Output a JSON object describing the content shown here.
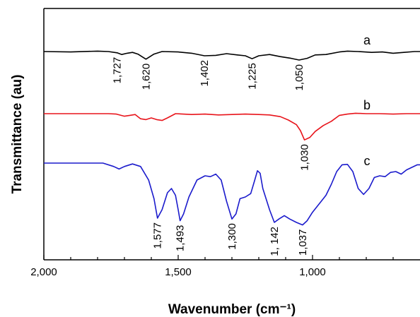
{
  "chart_data": {
    "type": "line",
    "xlabel": "Wavenumber (cm⁻¹)",
    "ylabel": "Transmittance (au)",
    "xlim": [
      2000,
      600
    ],
    "x_reversed": true,
    "xticks": [
      2000,
      1500,
      1000
    ],
    "xtick_labels": [
      "2,000",
      "1,500",
      "1,000"
    ],
    "yticks": false,
    "grid": false,
    "legend": "none",
    "colors": {
      "a": "#000000",
      "b": "#e8141b",
      "c": "#1b1bcc"
    },
    "series": [
      {
        "name": "a",
        "points": [
          [
            2000,
            0.0
          ],
          [
            1900,
            -0.5
          ],
          [
            1800,
            0.5
          ],
          [
            1760,
            0.0
          ],
          [
            1727,
            -1.5
          ],
          [
            1710,
            -3.5
          ],
          [
            1690,
            -2.0
          ],
          [
            1670,
            -1.0
          ],
          [
            1650,
            -3.0
          ],
          [
            1620,
            -9.0
          ],
          [
            1590,
            -3.0
          ],
          [
            1560,
            0.0
          ],
          [
            1500,
            -0.5
          ],
          [
            1450,
            -2.0
          ],
          [
            1402,
            -5.0
          ],
          [
            1360,
            -4.5
          ],
          [
            1320,
            -2.5
          ],
          [
            1280,
            -4.0
          ],
          [
            1250,
            -5.0
          ],
          [
            1225,
            -8.5
          ],
          [
            1200,
            -5.0
          ],
          [
            1160,
            -3.5
          ],
          [
            1120,
            -6.0
          ],
          [
            1080,
            -8.0
          ],
          [
            1050,
            -10.0
          ],
          [
            1020,
            -8.0
          ],
          [
            990,
            -4.0
          ],
          [
            950,
            -3.5
          ],
          [
            900,
            -0.5
          ],
          [
            870,
            0.5
          ],
          [
            830,
            0.0
          ],
          [
            780,
            -1.0
          ],
          [
            740,
            -0.5
          ],
          [
            700,
            -2.0
          ],
          [
            660,
            -1.0
          ],
          [
            620,
            0.0
          ],
          [
            600,
            0.0
          ]
        ]
      },
      {
        "name": "b",
        "points": [
          [
            2000,
            0.0
          ],
          [
            1800,
            0.0
          ],
          [
            1760,
            0.0
          ],
          [
            1730,
            -0.5
          ],
          [
            1700,
            -3.0
          ],
          [
            1680,
            -2.0
          ],
          [
            1660,
            -1.0
          ],
          [
            1640,
            -6.0
          ],
          [
            1620,
            -7.0
          ],
          [
            1600,
            -5.0
          ],
          [
            1580,
            -7.0
          ],
          [
            1560,
            -8.0
          ],
          [
            1540,
            -5.0
          ],
          [
            1510,
            0.0
          ],
          [
            1450,
            -1.0
          ],
          [
            1400,
            -0.5
          ],
          [
            1350,
            -1.5
          ],
          [
            1300,
            -1.0
          ],
          [
            1250,
            -0.5
          ],
          [
            1200,
            -1.0
          ],
          [
            1160,
            -1.5
          ],
          [
            1120,
            -3.5
          ],
          [
            1090,
            -7.5
          ],
          [
            1060,
            -13.0
          ],
          [
            1045,
            -20.0
          ],
          [
            1030,
            -31.0
          ],
          [
            1010,
            -28.0
          ],
          [
            990,
            -21.0
          ],
          [
            960,
            -14.0
          ],
          [
            930,
            -9.0
          ],
          [
            900,
            -2.0
          ],
          [
            870,
            -0.5
          ],
          [
            840,
            0.5
          ],
          [
            800,
            0.0
          ],
          [
            750,
            0.0
          ],
          [
            700,
            -0.5
          ],
          [
            650,
            0.0
          ],
          [
            600,
            0.0
          ]
        ]
      },
      {
        "name": "c",
        "points": [
          [
            2000,
            0.0
          ],
          [
            1850,
            0.0
          ],
          [
            1780,
            0.0
          ],
          [
            1740,
            -4.0
          ],
          [
            1720,
            -7.0
          ],
          [
            1700,
            -4.0
          ],
          [
            1670,
            -1.0
          ],
          [
            1640,
            -4.0
          ],
          [
            1610,
            -20.0
          ],
          [
            1590,
            -42.0
          ],
          [
            1577,
            -65.0
          ],
          [
            1560,
            -55.0
          ],
          [
            1540,
            -35.0
          ],
          [
            1525,
            -30.0
          ],
          [
            1510,
            -38.0
          ],
          [
            1500,
            -55.0
          ],
          [
            1493,
            -68.0
          ],
          [
            1480,
            -60.0
          ],
          [
            1460,
            -40.0
          ],
          [
            1430,
            -20.0
          ],
          [
            1400,
            -15.0
          ],
          [
            1380,
            -16.0
          ],
          [
            1360,
            -13.0
          ],
          [
            1340,
            -20.0
          ],
          [
            1320,
            -45.0
          ],
          [
            1300,
            -66.0
          ],
          [
            1285,
            -60.0
          ],
          [
            1270,
            -42.0
          ],
          [
            1250,
            -40.0
          ],
          [
            1230,
            -36.0
          ],
          [
            1215,
            -20.0
          ],
          [
            1205,
            -9.0
          ],
          [
            1195,
            -12.0
          ],
          [
            1185,
            -30.0
          ],
          [
            1160,
            -55.0
          ],
          [
            1142,
            -70.0
          ],
          [
            1125,
            -66.0
          ],
          [
            1105,
            -62.0
          ],
          [
            1085,
            -66.0
          ],
          [
            1060,
            -70.0
          ],
          [
            1037,
            -73.0
          ],
          [
            1020,
            -68.0
          ],
          [
            1000,
            -58.0
          ],
          [
            970,
            -46.0
          ],
          [
            950,
            -38.0
          ],
          [
            930,
            -25.0
          ],
          [
            910,
            -10.0
          ],
          [
            890,
            -2.0
          ],
          [
            870,
            -1.5
          ],
          [
            850,
            -10.0
          ],
          [
            830,
            -30.0
          ],
          [
            810,
            -37.0
          ],
          [
            790,
            -30.0
          ],
          [
            770,
            -17.0
          ],
          [
            750,
            -15.0
          ],
          [
            730,
            -16.0
          ],
          [
            710,
            -11.0
          ],
          [
            690,
            -10.0
          ],
          [
            670,
            -13.0
          ],
          [
            650,
            -8.0
          ],
          [
            630,
            -5.0
          ],
          [
            610,
            -2.0
          ],
          [
            600,
            -2.0
          ]
        ]
      }
    ],
    "peak_labels": [
      {
        "series": "a",
        "x": 1727,
        "text": "1,727"
      },
      {
        "series": "a",
        "x": 1620,
        "text": "1,620"
      },
      {
        "series": "a",
        "x": 1402,
        "text": "1,402"
      },
      {
        "series": "a",
        "x": 1225,
        "text": "1,225"
      },
      {
        "series": "a",
        "x": 1050,
        "text": "1,050"
      },
      {
        "series": "b",
        "x": 1030,
        "text": "1,030"
      },
      {
        "series": "c",
        "x": 1577,
        "text": "1,577"
      },
      {
        "series": "c",
        "x": 1493,
        "text": "1,493"
      },
      {
        "series": "c",
        "x": 1300,
        "text": "1,300"
      },
      {
        "series": "c",
        "x": 1142,
        "text": "1, 142"
      },
      {
        "series": "c",
        "x": 1037,
        "text": "1,037"
      }
    ]
  }
}
